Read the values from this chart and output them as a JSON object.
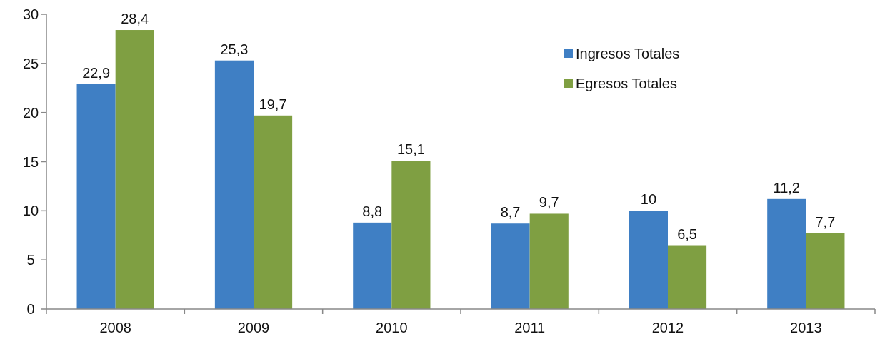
{
  "chart_data": {
    "type": "bar",
    "categories": [
      "2008",
      "2009",
      "2010",
      "2011",
      "2012",
      "2013"
    ],
    "series": [
      {
        "name": "Ingresos Totales",
        "color": "#3f7fc4",
        "values": [
          22.9,
          25.3,
          8.8,
          8.7,
          10,
          11.2
        ],
        "value_labels": [
          "22,9",
          "25,3",
          "8,8",
          "8,7",
          "10",
          "11,2"
        ]
      },
      {
        "name": "Egresos Totales",
        "color": "#7f9f42",
        "values": [
          28.4,
          19.7,
          15.1,
          9.7,
          6.5,
          7.7
        ],
        "value_labels": [
          "28,4",
          "19,7",
          "15,1",
          "9,7",
          "6,5",
          "7,7"
        ]
      }
    ],
    "ylim": [
      0,
      30
    ],
    "yticks": [
      0,
      5,
      10,
      15,
      20,
      25,
      30
    ],
    "grid": false,
    "legend": "top right"
  }
}
